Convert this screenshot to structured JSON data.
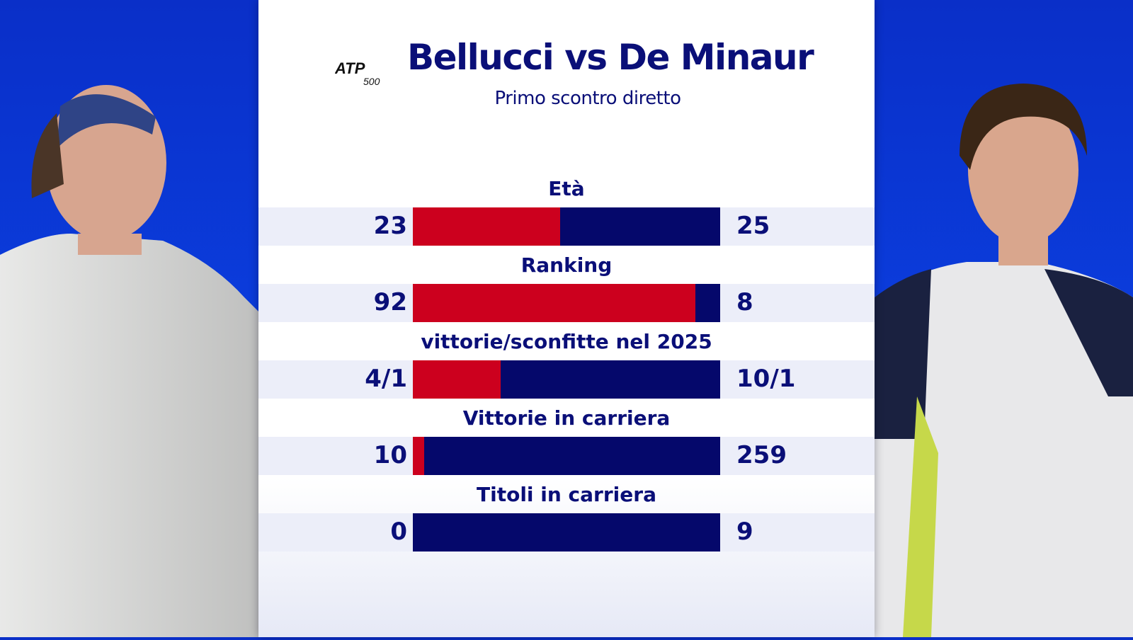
{
  "header": {
    "title": "Bellucci vs De Minaur",
    "subtitle": "Primo scontro diretto",
    "logo_text": "ATP 500"
  },
  "colors": {
    "left_player": "#cc001e",
    "right_player": "#05086b",
    "text": "#0a0f78",
    "background": "#0b3fe0"
  },
  "players": {
    "left": "Bellucci",
    "right": "De Minaur"
  },
  "stats": [
    {
      "label": "Età",
      "left": "23",
      "right": "25",
      "left_share": 0.479
    },
    {
      "label": "Ranking",
      "left": "92",
      "right": "8",
      "left_share": 0.92
    },
    {
      "label": "vittorie/sconfitte nel 2025",
      "left": "4/1",
      "right": "10/1",
      "left_share": 0.286
    },
    {
      "label": "Vittorie in carriera",
      "left": "10",
      "right": "259",
      "left_share": 0.037
    },
    {
      "label": "Titoli in carriera",
      "left": "0",
      "right": "9",
      "left_share": 0
    }
  ]
}
